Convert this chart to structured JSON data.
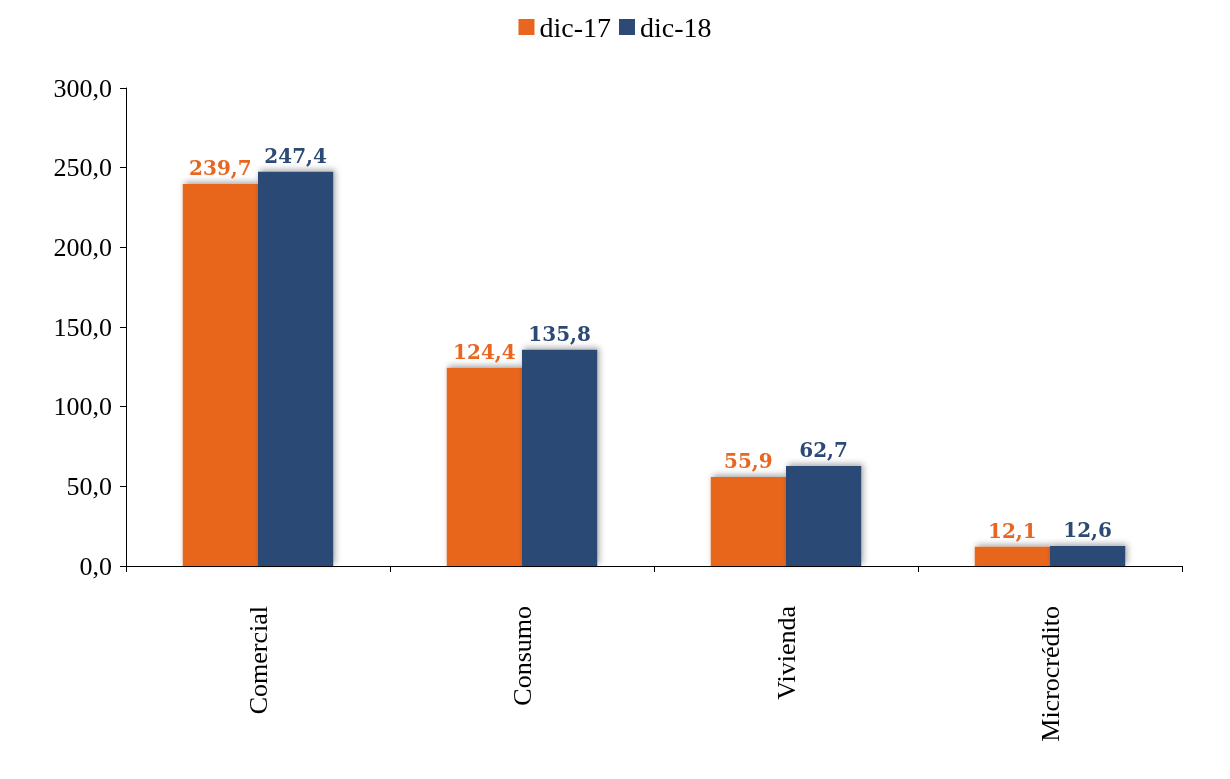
{
  "chart_data": {
    "type": "bar",
    "categories": [
      "Comercial",
      "Consumo",
      "Vivienda",
      "Microcrédito"
    ],
    "series": [
      {
        "name": "dic-17",
        "color": "#e8661f",
        "values": [
          239.7,
          124.4,
          55.9,
          12.1
        ],
        "value_labels": [
          "239,7",
          "124,4",
          "55,9",
          "12,1"
        ]
      },
      {
        "name": "dic-18",
        "color": "#2c4a74",
        "values": [
          247.4,
          135.8,
          62.7,
          12.6
        ],
        "value_labels": [
          "247,4",
          "135,8",
          "62,7",
          "12,6"
        ]
      }
    ],
    "ylim": [
      0,
      300
    ],
    "yticks": [
      {
        "value": 0,
        "label": "0,0"
      },
      {
        "value": 50,
        "label": "50,0"
      },
      {
        "value": 100,
        "label": "100,0"
      },
      {
        "value": 150,
        "label": "150,0"
      },
      {
        "value": 200,
        "label": "200,0"
      },
      {
        "value": 250,
        "label": "250,0"
      },
      {
        "value": 300,
        "label": "300,0"
      }
    ],
    "grid": false,
    "legend": "top"
  }
}
